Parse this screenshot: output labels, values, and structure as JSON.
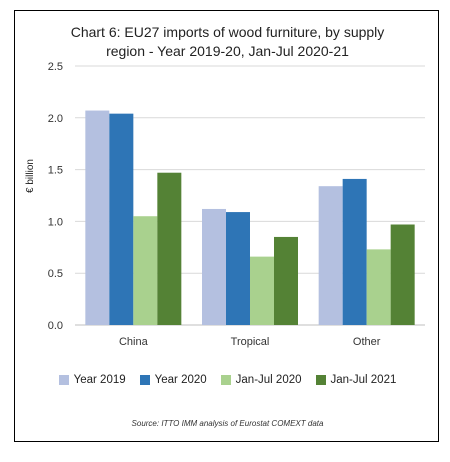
{
  "chart_data": {
    "type": "bar",
    "title_line1": "Chart 6: EU27 imports of wood furniture, by supply",
    "title_line2": "region - Year 2019-20, Jan-Jul 2020-21",
    "ylabel": "€ billion",
    "ylim": [
      0,
      2.5
    ],
    "yticks": [
      "0.0",
      "0.5",
      "1.0",
      "1.5",
      "2.0",
      "2.5"
    ],
    "categories": [
      "China",
      "Tropical",
      "Other"
    ],
    "series": [
      {
        "name": "Year 2019",
        "color": "#b4c0e0",
        "values": [
          2.07,
          1.12,
          1.34
        ]
      },
      {
        "name": "Year 2020",
        "color": "#2e75b6",
        "values": [
          2.04,
          1.09,
          1.41
        ]
      },
      {
        "name": "Jan-Jul 2020",
        "color": "#a9d18e",
        "values": [
          1.05,
          0.66,
          0.73
        ]
      },
      {
        "name": "Jan-Jul 2021",
        "color": "#548235",
        "values": [
          1.47,
          0.85,
          0.97
        ]
      }
    ],
    "grid": true,
    "legend_position": "bottom",
    "source": "Source: ITTO IMM analysis of Eurostat COMEXT data"
  }
}
